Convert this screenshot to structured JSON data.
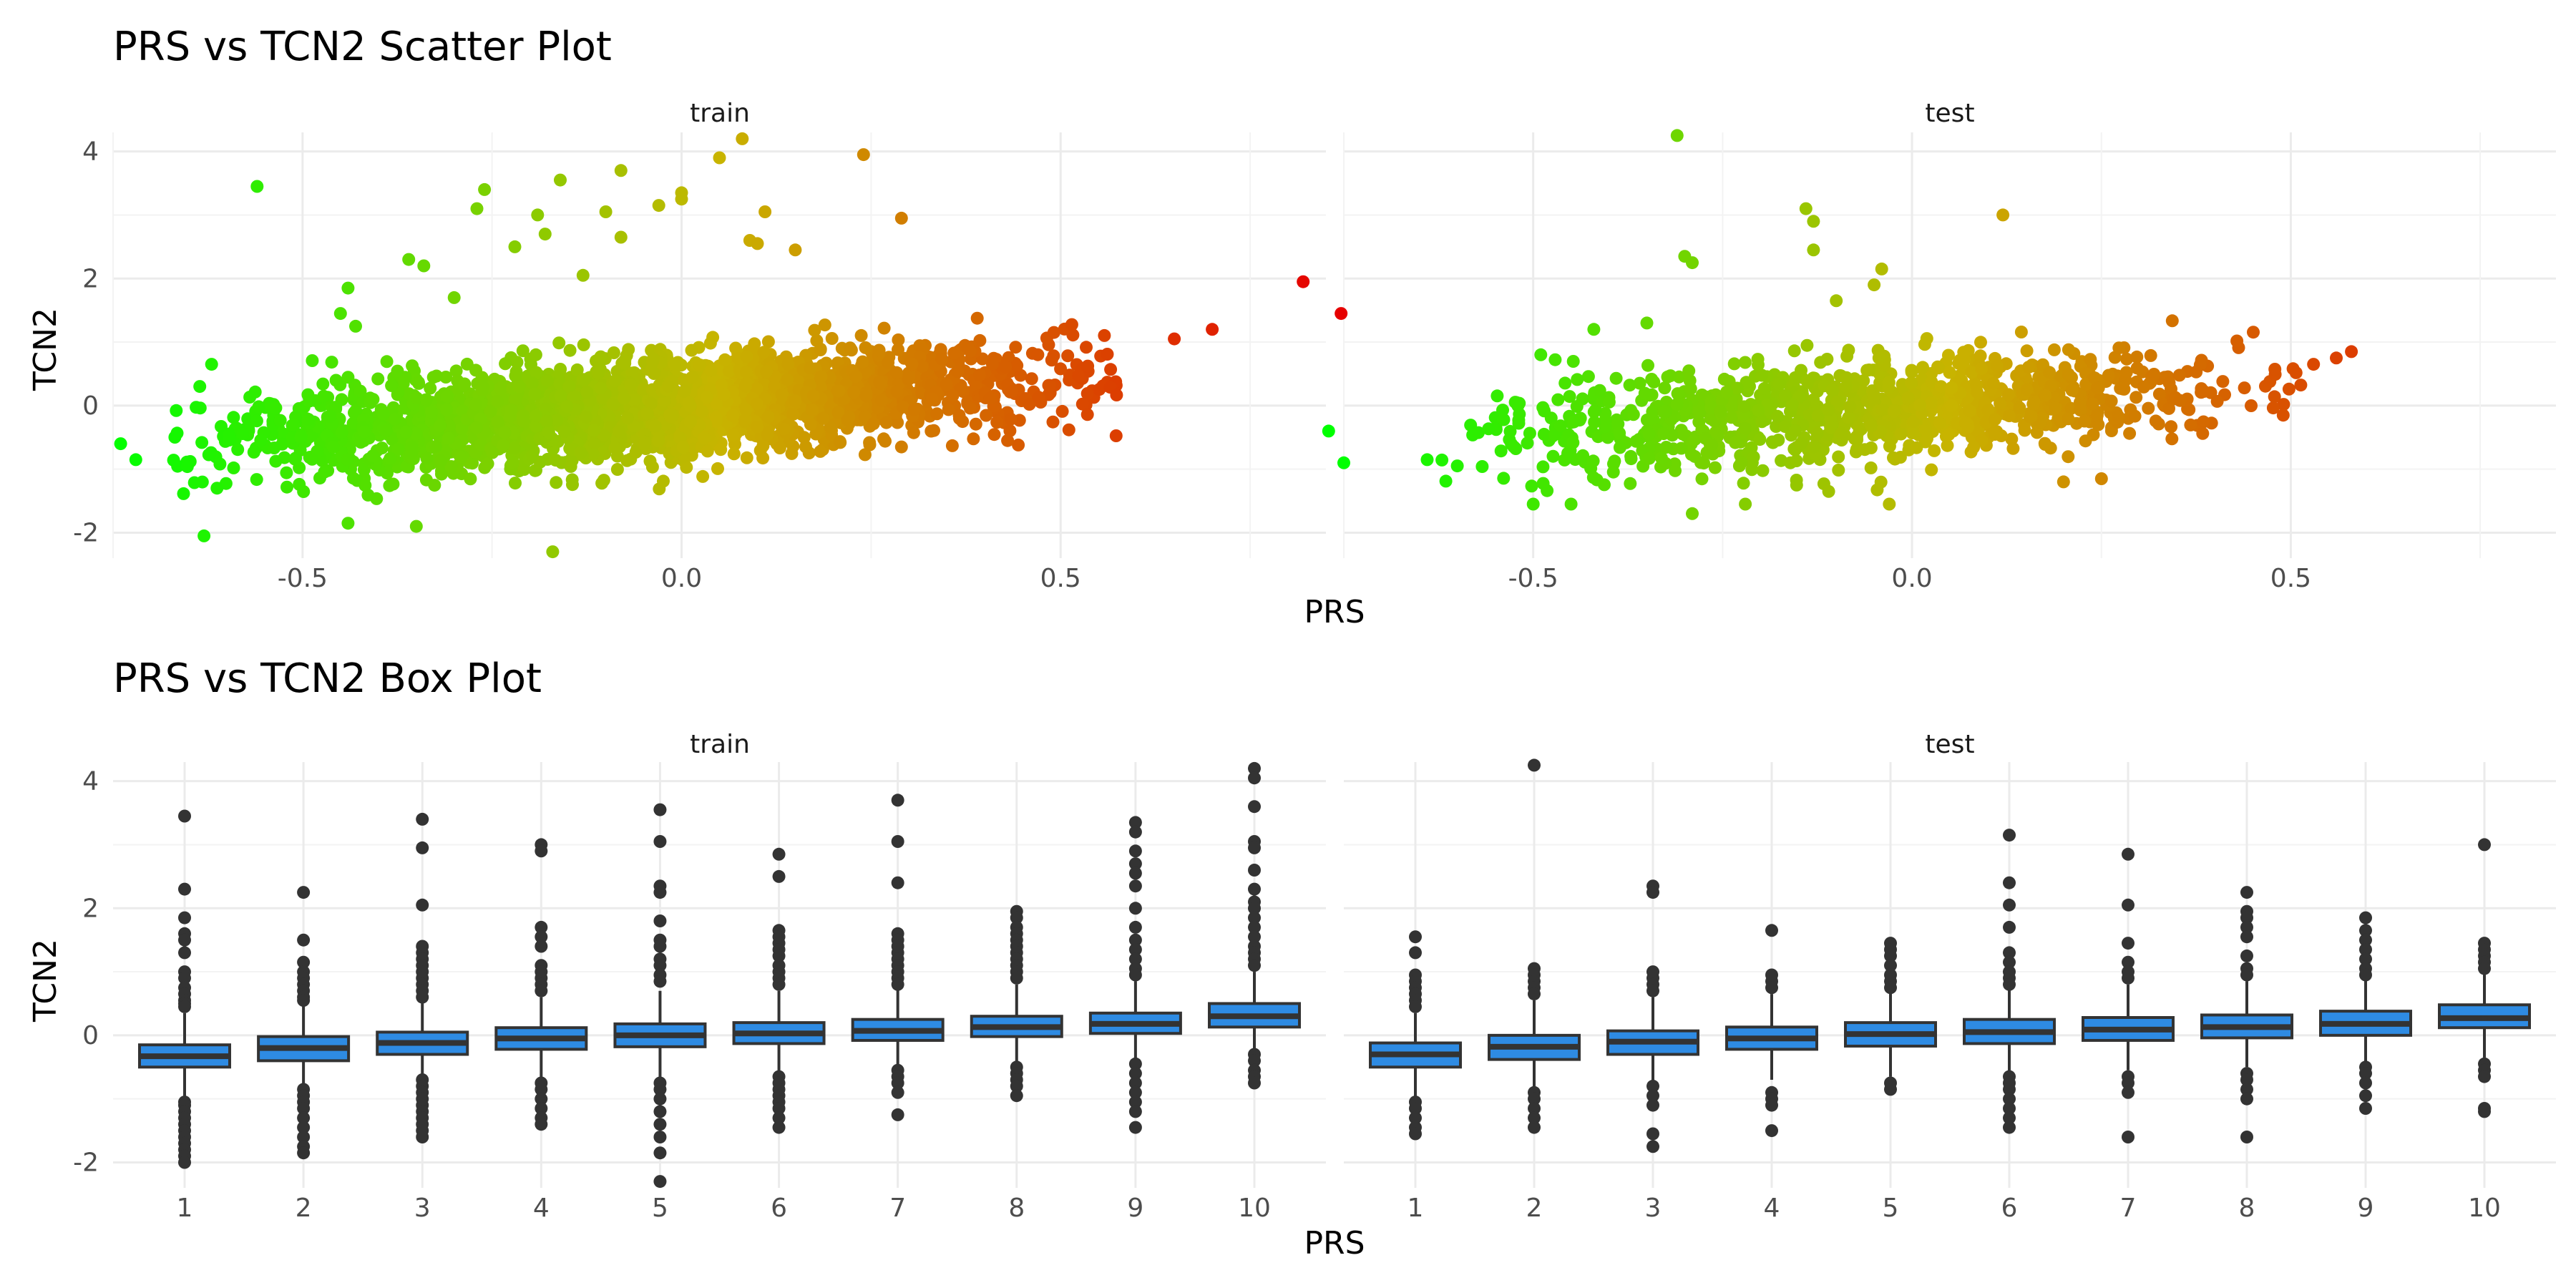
{
  "chart_data": [
    {
      "type": "scatter",
      "title": "PRS vs TCN2 Scatter Plot",
      "xlabel": "PRS",
      "ylabel": "TCN2",
      "facets": [
        "train",
        "test"
      ],
      "xlim": [
        -0.75,
        0.85
      ],
      "ylim": [
        -2.4,
        4.3
      ],
      "x_ticks": [
        "-0.5",
        "0.0",
        "0.5"
      ],
      "y_ticks": [
        "-2",
        "0",
        "2",
        "4"
      ],
      "grid": true,
      "color_scale": {
        "low": "#00ff00",
        "mid": "#c8b400",
        "high": "#e60000"
      },
      "trend": {
        "slope": 0.87,
        "intercept": 0.0
      },
      "clouds": [
        {
          "facet": "train",
          "n": 2600,
          "x_range": [
            -0.68,
            0.58
          ],
          "y_spread": 0.38
        },
        {
          "facet": "test",
          "n": 1100,
          "x_range": [
            -0.65,
            0.52
          ],
          "y_spread": 0.38
        }
      ],
      "outliers": {
        "train": [
          [
            -0.74,
            -0.6
          ],
          [
            -0.72,
            -0.85
          ],
          [
            -0.63,
            -2.05
          ],
          [
            -0.62,
            0.65
          ],
          [
            -0.56,
            3.45
          ],
          [
            -0.45,
            1.45
          ],
          [
            -0.44,
            1.85
          ],
          [
            -0.44,
            -1.85
          ],
          [
            -0.43,
            1.25
          ],
          [
            -0.36,
            2.3
          ],
          [
            -0.34,
            2.2
          ],
          [
            -0.35,
            -1.9
          ],
          [
            -0.3,
            1.7
          ],
          [
            -0.27,
            3.1
          ],
          [
            -0.26,
            3.4
          ],
          [
            -0.22,
            2.5
          ],
          [
            -0.19,
            3.0
          ],
          [
            -0.18,
            2.7
          ],
          [
            -0.17,
            -2.3
          ],
          [
            -0.16,
            3.55
          ],
          [
            -0.13,
            2.05
          ],
          [
            -0.1,
            3.05
          ],
          [
            -0.08,
            3.7
          ],
          [
            -0.08,
            2.65
          ],
          [
            -0.03,
            3.15
          ],
          [
            0.0,
            3.35
          ],
          [
            0.0,
            3.25
          ],
          [
            0.05,
            3.9
          ],
          [
            0.08,
            4.2
          ],
          [
            0.09,
            2.6
          ],
          [
            0.1,
            2.55
          ],
          [
            0.11,
            3.05
          ],
          [
            0.15,
            2.45
          ],
          [
            0.24,
            3.95
          ],
          [
            0.29,
            2.95
          ],
          [
            0.29,
            -0.65
          ],
          [
            0.43,
            -0.55
          ],
          [
            0.7,
            1.2
          ],
          [
            0.65,
            1.05
          ],
          [
            0.82,
            1.95
          ],
          [
            0.87,
            1.45
          ]
        ],
        "test": [
          [
            -0.77,
            -0.4
          ],
          [
            -0.75,
            -0.9
          ],
          [
            -0.64,
            -0.85
          ],
          [
            -0.5,
            -1.55
          ],
          [
            -0.45,
            -1.55
          ],
          [
            -0.49,
            0.8
          ],
          [
            -0.42,
            1.2
          ],
          [
            -0.35,
            1.3
          ],
          [
            -0.3,
            2.35
          ],
          [
            -0.29,
            2.25
          ],
          [
            -0.31,
            4.25
          ],
          [
            -0.29,
            -1.7
          ],
          [
            -0.22,
            -1.55
          ],
          [
            -0.14,
            3.1
          ],
          [
            -0.13,
            2.9
          ],
          [
            -0.13,
            2.45
          ],
          [
            -0.11,
            -1.35
          ],
          [
            -0.1,
            1.65
          ],
          [
            -0.05,
            1.9
          ],
          [
            -0.04,
            2.15
          ],
          [
            -0.03,
            -1.55
          ],
          [
            0.12,
            3.0
          ],
          [
            0.2,
            -1.2
          ],
          [
            0.25,
            -1.15
          ],
          [
            0.49,
            -0.15
          ],
          [
            0.53,
            0.65
          ],
          [
            0.58,
            0.85
          ],
          [
            0.56,
            0.75
          ]
        ]
      }
    },
    {
      "type": "box",
      "title": "PRS vs TCN2 Box Plot",
      "xlabel": "PRS",
      "ylabel": "TCN2",
      "facets": [
        "train",
        "test"
      ],
      "categories": [
        "1",
        "2",
        "3",
        "4",
        "5",
        "6",
        "7",
        "8",
        "9",
        "10"
      ],
      "ylim": [
        -2.4,
        4.3
      ],
      "y_ticks": [
        "-2",
        "0",
        "2",
        "4"
      ],
      "grid": true,
      "fill": "#2e8be3",
      "series": [
        {
          "name": "train",
          "boxes": [
            {
              "min": -1.0,
              "q1": -0.5,
              "median": -0.33,
              "q3": -0.15,
              "max": 0.35,
              "outliers": [
                3.45,
                2.3,
                1.85,
                1.6,
                1.5,
                1.3,
                1.0,
                0.9,
                0.75,
                0.65,
                0.55,
                0.5,
                0.45,
                -1.05,
                -1.1,
                -1.2,
                -1.3,
                -1.4,
                -1.5,
                -1.6,
                -1.7,
                -1.8,
                -1.9,
                -2.0
              ]
            },
            {
              "min": -0.85,
              "q1": -0.4,
              "median": -0.2,
              "q3": -0.02,
              "max": 0.5,
              "outliers": [
                2.25,
                1.5,
                1.15,
                1.0,
                0.9,
                0.8,
                0.7,
                0.6,
                0.55,
                -0.85,
                -0.95,
                -1.05,
                -1.15,
                -1.3,
                -1.45,
                -1.6,
                -1.75,
                -1.85
              ]
            },
            {
              "min": -0.7,
              "q1": -0.3,
              "median": -0.12,
              "q3": 0.05,
              "max": 0.55,
              "outliers": [
                3.4,
                2.95,
                2.05,
                1.4,
                1.3,
                1.2,
                1.1,
                1.0,
                0.9,
                0.8,
                0.7,
                0.6,
                -0.7,
                -0.8,
                -0.9,
                -1.0,
                -1.1,
                -1.2,
                -1.3,
                -1.4,
                -1.5,
                -1.6
              ]
            },
            {
              "min": -0.7,
              "q1": -0.22,
              "median": -0.05,
              "q3": 0.12,
              "max": 0.6,
              "outliers": [
                3.0,
                2.9,
                1.7,
                1.55,
                1.4,
                1.1,
                1.0,
                0.9,
                0.8,
                0.7,
                -0.75,
                -0.85,
                -1.0,
                -1.15,
                -1.3,
                -1.4
              ]
            },
            {
              "min": -0.7,
              "q1": -0.18,
              "median": 0.0,
              "q3": 0.18,
              "max": 0.7,
              "outliers": [
                3.55,
                3.05,
                2.35,
                2.25,
                1.8,
                1.5,
                1.4,
                1.2,
                1.1,
                0.95,
                0.85,
                -0.75,
                -0.85,
                -1.0,
                -1.2,
                -1.4,
                -1.6,
                -1.85,
                -2.3
              ]
            },
            {
              "min": -0.6,
              "q1": -0.13,
              "median": 0.03,
              "q3": 0.2,
              "max": 0.7,
              "outliers": [
                2.85,
                2.5,
                1.65,
                1.55,
                1.45,
                1.35,
                1.25,
                1.1,
                1.0,
                0.9,
                0.8,
                -0.65,
                -0.75,
                -0.85,
                -0.95,
                -1.05,
                -1.15,
                -1.3,
                -1.45
              ]
            },
            {
              "min": -0.5,
              "q1": -0.08,
              "median": 0.07,
              "q3": 0.25,
              "max": 0.75,
              "outliers": [
                3.7,
                3.05,
                2.4,
                1.6,
                1.5,
                1.4,
                1.3,
                1.2,
                1.1,
                1.0,
                0.9,
                0.8,
                -0.55,
                -0.65,
                -0.75,
                -0.9,
                -1.25
              ]
            },
            {
              "min": -0.45,
              "q1": -0.02,
              "median": 0.13,
              "q3": 0.3,
              "max": 0.8,
              "outliers": [
                1.95,
                1.85,
                1.7,
                1.6,
                1.5,
                1.4,
                1.3,
                1.2,
                1.1,
                1.0,
                0.9,
                -0.5,
                -0.6,
                -0.7,
                -0.8,
                -0.95
              ]
            },
            {
              "min": -0.4,
              "q1": 0.03,
              "median": 0.18,
              "q3": 0.35,
              "max": 0.85,
              "outliers": [
                3.35,
                3.2,
                2.9,
                2.7,
                2.55,
                2.35,
                2.0,
                1.7,
                1.5,
                1.35,
                1.2,
                1.05,
                0.95,
                -0.45,
                -0.6,
                -0.75,
                -0.9,
                -1.05,
                -1.2,
                -1.45
              ]
            },
            {
              "min": -0.25,
              "q1": 0.13,
              "median": 0.3,
              "q3": 0.5,
              "max": 1.0,
              "outliers": [
                4.2,
                4.05,
                3.6,
                3.05,
                2.95,
                2.6,
                2.3,
                2.1,
                2.0,
                1.85,
                1.7,
                1.55,
                1.4,
                1.3,
                1.2,
                1.1,
                -0.3,
                -0.4,
                -0.55,
                -0.65,
                -0.75
              ]
            }
          ]
        },
        {
          "name": "test",
          "boxes": [
            {
              "min": -1.0,
              "q1": -0.5,
              "median": -0.3,
              "q3": -0.12,
              "max": 0.35,
              "outliers": [
                1.55,
                1.3,
                0.95,
                0.85,
                0.75,
                0.65,
                0.55,
                0.45,
                -1.05,
                -1.15,
                -1.3,
                -1.45,
                -1.55
              ]
            },
            {
              "min": -0.85,
              "q1": -0.38,
              "median": -0.18,
              "q3": 0.0,
              "max": 0.55,
              "outliers": [
                4.25,
                1.05,
                0.95,
                0.85,
                0.75,
                0.65,
                -0.9,
                -1.0,
                -1.15,
                -1.3,
                -1.45
              ]
            },
            {
              "min": -0.75,
              "q1": -0.3,
              "median": -0.1,
              "q3": 0.07,
              "max": 0.6,
              "outliers": [
                2.35,
                2.25,
                1.0,
                0.9,
                0.8,
                0.7,
                -0.8,
                -0.95,
                -1.1,
                -1.55,
                -1.75
              ]
            },
            {
              "min": -0.7,
              "q1": -0.22,
              "median": -0.05,
              "q3": 0.13,
              "max": 0.65,
              "outliers": [
                1.65,
                0.95,
                0.85,
                0.75,
                -0.9,
                -1.0,
                -1.1,
                -1.5
              ]
            },
            {
              "min": -0.65,
              "q1": -0.17,
              "median": 0.02,
              "q3": 0.2,
              "max": 0.7,
              "outliers": [
                1.45,
                1.35,
                1.25,
                1.1,
                0.95,
                0.85,
                0.75,
                -0.75,
                -0.85
              ]
            },
            {
              "min": -0.6,
              "q1": -0.13,
              "median": 0.05,
              "q3": 0.25,
              "max": 0.75,
              "outliers": [
                3.15,
                2.4,
                2.05,
                1.7,
                1.3,
                1.15,
                1.0,
                0.9,
                0.8,
                -0.65,
                -0.75,
                -0.85,
                -1.0,
                -1.15,
                -1.3,
                -1.45
              ]
            },
            {
              "min": -0.55,
              "q1": -0.08,
              "median": 0.09,
              "q3": 0.28,
              "max": 0.8,
              "outliers": [
                2.85,
                2.05,
                1.45,
                1.15,
                1.0,
                0.9,
                -0.65,
                -0.75,
                -0.9,
                -1.6
              ]
            },
            {
              "min": -0.5,
              "q1": -0.04,
              "median": 0.13,
              "q3": 0.32,
              "max": 0.85,
              "outliers": [
                2.25,
                1.95,
                1.85,
                1.7,
                1.55,
                1.25,
                1.05,
                0.95,
                -0.6,
                -0.7,
                -0.85,
                -1.0,
                -1.6
              ]
            },
            {
              "min": -0.45,
              "q1": 0.0,
              "median": 0.18,
              "q3": 0.38,
              "max": 0.9,
              "outliers": [
                1.85,
                1.65,
                1.5,
                1.35,
                1.2,
                1.05,
                0.95,
                -0.5,
                -0.6,
                -0.75,
                -0.95,
                -1.15
              ]
            },
            {
              "min": -0.35,
              "q1": 0.12,
              "median": 0.27,
              "q3": 0.48,
              "max": 1.0,
              "outliers": [
                3.0,
                1.45,
                1.35,
                1.25,
                1.15,
                1.05,
                -0.45,
                -0.55,
                -0.65,
                -1.15,
                -1.2
              ]
            }
          ]
        }
      ]
    }
  ]
}
